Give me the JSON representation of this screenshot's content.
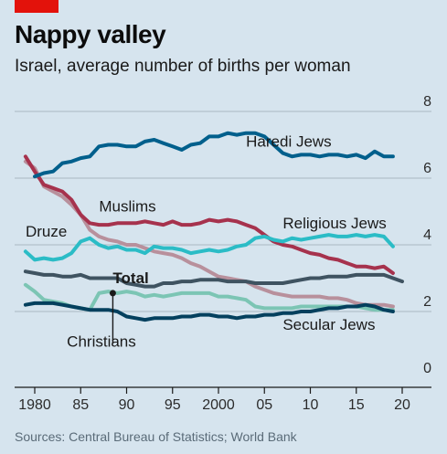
{
  "header": {
    "title": "Nappy valley",
    "subtitle": "Israel, average number of births per woman"
  },
  "source": "Sources: Central Bureau of Statistics; World Bank",
  "chart_data": {
    "type": "line",
    "xlim": [
      1979,
      2020
    ],
    "ylim": [
      0,
      8
    ],
    "x_ticks": [
      {
        "value": 1980,
        "label": "1980"
      },
      {
        "value": 1985,
        "label": "85"
      },
      {
        "value": 1990,
        "label": "90"
      },
      {
        "value": 1995,
        "label": "95"
      },
      {
        "value": 2000,
        "label": "2000"
      },
      {
        "value": 2005,
        "label": "05"
      },
      {
        "value": 2010,
        "label": "10"
      },
      {
        "value": 2015,
        "label": "15"
      },
      {
        "value": 2020,
        "label": "20"
      }
    ],
    "y_ticks": [
      0,
      2,
      4,
      6,
      8
    ],
    "grid": true,
    "series": [
      {
        "name": "Haredi Jews",
        "color": "#005f8c",
        "label_pos": [
          2003,
          6.95
        ],
        "x": [
          1980,
          1981,
          1982,
          1983,
          1984,
          1985,
          1986,
          1987,
          1988,
          1989,
          1990,
          1991,
          1992,
          1993,
          1994,
          1995,
          1996,
          1997,
          1998,
          1999,
          2000,
          2001,
          2002,
          2003,
          2004,
          2005,
          2006,
          2007,
          2008,
          2009,
          2010,
          2011,
          2012,
          2013,
          2014,
          2015,
          2016,
          2017,
          2018,
          2019
        ],
        "y": [
          6.05,
          6.15,
          6.2,
          6.45,
          6.5,
          6.6,
          6.65,
          6.95,
          7.0,
          7.0,
          6.95,
          6.95,
          7.1,
          7.15,
          7.05,
          6.95,
          6.85,
          7.0,
          7.05,
          7.25,
          7.25,
          7.35,
          7.3,
          7.35,
          7.35,
          7.25,
          7.0,
          6.75,
          6.65,
          6.7,
          6.7,
          6.65,
          6.7,
          6.7,
          6.65,
          6.7,
          6.6,
          6.8,
          6.65,
          6.65
        ]
      },
      {
        "name": "Muslims",
        "color": "#a6324d",
        "label_pos": [
          1987,
          5.0
        ],
        "x": [
          1979,
          1980,
          1981,
          1982,
          1983,
          1984,
          1985,
          1986,
          1987,
          1988,
          1989,
          1990,
          1991,
          1992,
          1993,
          1994,
          1995,
          1996,
          1997,
          1998,
          1999,
          2000,
          2001,
          2002,
          2003,
          2004,
          2005,
          2006,
          2007,
          2008,
          2009,
          2010,
          2011,
          2012,
          2013,
          2014,
          2015,
          2016,
          2017,
          2018,
          2019
        ],
        "y": [
          6.65,
          6.2,
          5.8,
          5.7,
          5.6,
          5.35,
          4.9,
          4.65,
          4.6,
          4.6,
          4.65,
          4.65,
          4.65,
          4.7,
          4.65,
          4.6,
          4.7,
          4.6,
          4.6,
          4.65,
          4.75,
          4.7,
          4.75,
          4.7,
          4.6,
          4.5,
          4.3,
          4.1,
          4.0,
          3.95,
          3.85,
          3.75,
          3.7,
          3.6,
          3.55,
          3.45,
          3.35,
          3.35,
          3.3,
          3.35,
          3.15
        ]
      },
      {
        "name": "Druze",
        "color": "#b8909c",
        "label_pos": [
          1979,
          4.25
        ],
        "x": [
          1979,
          1980,
          1981,
          1982,
          1983,
          1984,
          1985,
          1986,
          1987,
          1988,
          1989,
          1990,
          1991,
          1992,
          1993,
          1994,
          1995,
          1996,
          1997,
          1998,
          1999,
          2000,
          2001,
          2002,
          2003,
          2004,
          2005,
          2006,
          2007,
          2008,
          2009,
          2010,
          2011,
          2012,
          2013,
          2014,
          2015,
          2016,
          2017,
          2018,
          2019
        ],
        "y": [
          6.5,
          6.3,
          5.75,
          5.6,
          5.45,
          5.2,
          4.9,
          4.45,
          4.25,
          4.15,
          4.1,
          4.0,
          4.0,
          3.9,
          3.8,
          3.75,
          3.7,
          3.6,
          3.45,
          3.35,
          3.2,
          3.05,
          3.0,
          2.95,
          2.9,
          2.75,
          2.65,
          2.55,
          2.5,
          2.45,
          2.45,
          2.45,
          2.45,
          2.4,
          2.4,
          2.35,
          2.25,
          2.2,
          2.2,
          2.2,
          2.15
        ]
      },
      {
        "name": "Religious Jews",
        "color": "#2bbcc6",
        "label_pos": [
          2007,
          4.5
        ],
        "x": [
          1979,
          1980,
          1981,
          1982,
          1983,
          1984,
          1985,
          1986,
          1987,
          1988,
          1989,
          1990,
          1991,
          1992,
          1993,
          1994,
          1995,
          1996,
          1997,
          1998,
          1999,
          2000,
          2001,
          2002,
          2003,
          2004,
          2005,
          2006,
          2007,
          2008,
          2009,
          2010,
          2011,
          2012,
          2013,
          2014,
          2015,
          2016,
          2017,
          2018,
          2019
        ],
        "y": [
          3.8,
          3.55,
          3.6,
          3.55,
          3.6,
          3.75,
          4.1,
          4.2,
          4.0,
          3.9,
          3.95,
          3.85,
          3.85,
          3.75,
          3.95,
          3.9,
          3.9,
          3.85,
          3.75,
          3.8,
          3.85,
          3.8,
          3.85,
          3.95,
          4.0,
          4.2,
          4.25,
          4.15,
          4.1,
          4.2,
          4.15,
          4.2,
          4.25,
          4.3,
          4.25,
          4.25,
          4.3,
          4.25,
          4.3,
          4.25,
          3.95
        ]
      },
      {
        "name": "Total",
        "color": "#3f5361",
        "label_pos": [
          1988.5,
          2.85
        ],
        "x": [
          1979,
          1980,
          1981,
          1982,
          1983,
          1984,
          1985,
          1986,
          1987,
          1988,
          1989,
          1990,
          1991,
          1992,
          1993,
          1994,
          1995,
          1996,
          1997,
          1998,
          1999,
          2000,
          2001,
          2002,
          2003,
          2004,
          2005,
          2006,
          2007,
          2008,
          2009,
          2010,
          2011,
          2012,
          2013,
          2014,
          2015,
          2016,
          2017,
          2018,
          2019,
          2020
        ],
        "y": [
          3.2,
          3.15,
          3.1,
          3.1,
          3.05,
          3.05,
          3.1,
          3.0,
          3.0,
          3.0,
          3.0,
          2.85,
          2.8,
          2.75,
          2.75,
          2.85,
          2.85,
          2.9,
          2.9,
          2.95,
          2.95,
          2.95,
          2.9,
          2.9,
          2.9,
          2.85,
          2.85,
          2.85,
          2.85,
          2.9,
          2.95,
          3.0,
          3.0,
          3.05,
          3.05,
          3.05,
          3.1,
          3.1,
          3.1,
          3.1,
          3.0,
          2.9
        ]
      },
      {
        "name": "Christians",
        "color": "#7cc5b4",
        "label_pos": [
          1983.5,
          0.95
        ],
        "x": [
          1979,
          1980,
          1981,
          1982,
          1983,
          1984,
          1985,
          1986,
          1987,
          1988,
          1989,
          1990,
          1991,
          1992,
          1993,
          1994,
          1995,
          1996,
          1997,
          1998,
          1999,
          2000,
          2001,
          2002,
          2003,
          2004,
          2005,
          2006,
          2007,
          2008,
          2009,
          2010,
          2011,
          2012,
          2013,
          2014,
          2015,
          2016,
          2017,
          2018,
          2019
        ],
        "y": [
          2.8,
          2.6,
          2.35,
          2.3,
          2.25,
          2.15,
          2.1,
          2.05,
          2.55,
          2.6,
          2.55,
          2.6,
          2.55,
          2.45,
          2.5,
          2.45,
          2.5,
          2.55,
          2.55,
          2.55,
          2.55,
          2.45,
          2.45,
          2.4,
          2.35,
          2.15,
          2.1,
          2.1,
          2.1,
          2.1,
          2.15,
          2.15,
          2.15,
          2.15,
          2.15,
          2.15,
          2.15,
          2.1,
          2.05,
          2.05,
          2.05
        ]
      },
      {
        "name": "Secular Jews",
        "color": "#04405e",
        "label_pos": [
          2007,
          1.45
        ],
        "x": [
          1979,
          1980,
          1981,
          1982,
          1983,
          1984,
          1985,
          1986,
          1987,
          1988,
          1989,
          1990,
          1991,
          1992,
          1993,
          1994,
          1995,
          1996,
          1997,
          1998,
          1999,
          2000,
          2001,
          2002,
          2003,
          2004,
          2005,
          2006,
          2007,
          2008,
          2009,
          2010,
          2011,
          2012,
          2013,
          2014,
          2015,
          2016,
          2017,
          2018,
          2019
        ],
        "y": [
          2.2,
          2.25,
          2.25,
          2.25,
          2.2,
          2.15,
          2.1,
          2.05,
          2.05,
          2.05,
          2.0,
          1.85,
          1.8,
          1.75,
          1.8,
          1.8,
          1.8,
          1.85,
          1.85,
          1.9,
          1.9,
          1.85,
          1.85,
          1.8,
          1.85,
          1.85,
          1.9,
          1.9,
          1.95,
          1.95,
          2.0,
          2.0,
          2.05,
          2.1,
          2.1,
          2.15,
          2.15,
          2.2,
          2.15,
          2.05,
          2.0
        ]
      }
    ],
    "annotations": {
      "christians_leader": {
        "x": 1988.5,
        "y_from": 2.55,
        "y_to": 1.05
      }
    }
  }
}
